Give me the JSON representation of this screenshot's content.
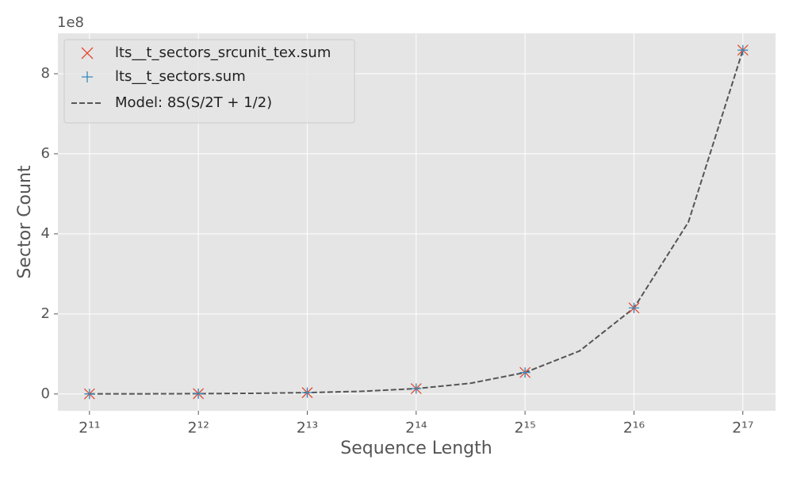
{
  "chart_data": {
    "type": "scatter",
    "x_label": "Sequence Length",
    "y_label": "Sector Count",
    "y_offset_label": "1e8",
    "xscale": "log2",
    "xlim": [
      1675,
      161400
    ],
    "ylim": [
      -0.42,
      9.01
    ],
    "xticks": [
      {
        "value": 2048,
        "label": "2¹¹"
      },
      {
        "value": 4096,
        "label": "2¹²"
      },
      {
        "value": 8192,
        "label": "2¹³"
      },
      {
        "value": 16384,
        "label": "2¹⁴"
      },
      {
        "value": 32768,
        "label": "2¹⁵"
      },
      {
        "value": 65536,
        "label": "2¹⁶"
      },
      {
        "value": 131072,
        "label": "2¹⁷"
      }
    ],
    "yticks": [
      0,
      2,
      4,
      6,
      8
    ],
    "grid": true,
    "legend": "upper left",
    "series": [
      {
        "name": "lts__t_sectors_srcunit_tex.sum",
        "color": "#E24A33",
        "marker": "x",
        "x": [
          2048,
          4096,
          8192,
          16384,
          32768,
          65536,
          131072
        ],
        "values": [
          0.0021,
          0.0084,
          0.0336,
          0.134,
          0.537,
          2.15,
          8.59
        ]
      },
      {
        "name": "lts__t_sectors.sum",
        "color": "#348ABD",
        "marker": "+",
        "x": [
          2048,
          4096,
          8192,
          16384,
          32768,
          65536,
          131072
        ],
        "values": [
          0.0021,
          0.0084,
          0.0336,
          0.134,
          0.537,
          2.15,
          8.59
        ]
      },
      {
        "name": "Model: 8S(S/2T + 1/2)",
        "color": "#555555",
        "marker": "dashed-line",
        "x": [
          2048,
          2896,
          4096,
          5793,
          8192,
          11585,
          16384,
          23170,
          32768,
          46341,
          65536,
          92682,
          131072
        ],
        "values": [
          0.0021,
          0.0042,
          0.0084,
          0.0168,
          0.0336,
          0.0671,
          0.134,
          0.268,
          0.537,
          1.074,
          2.147,
          4.295,
          8.59
        ]
      }
    ]
  }
}
